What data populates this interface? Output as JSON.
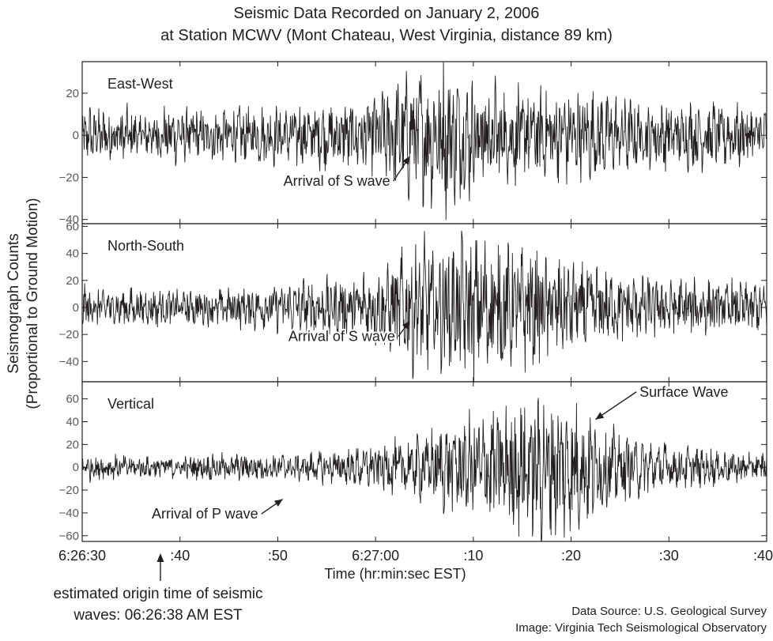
{
  "title": "Seismic Data Recorded on January 2, 2006",
  "subtitle": "at Station MCWV (Mont Chateau, West Virginia, distance 89 km)",
  "ylabel_line1": "Seismograph Counts",
  "ylabel_line2": "(Proportional to Ground Motion)",
  "xlabel": "Time (hr:min:sec EST)",
  "origin_note_line1": "estimated origin time of seismic",
  "origin_note_line2": "waves:  06:26:38 AM EST",
  "source_line1": "Data Source: U.S. Geological Survey",
  "source_line2": "Image: Virginia Tech Seismological Observatory",
  "colors": {
    "trace": "#231f20",
    "axis": "#231f20",
    "background": "#ffffff"
  },
  "chart_data": {
    "type": "line",
    "x_unit_note": "seconds after 6:26:30 EST",
    "xlim": [
      0,
      70
    ],
    "x_ticks": [
      {
        "x": 0,
        "label": "6:26:30"
      },
      {
        "x": 10,
        "label": ":40"
      },
      {
        "x": 20,
        "label": ":50"
      },
      {
        "x": 30,
        "label": "6:27:00"
      },
      {
        "x": 40,
        "label": ":10"
      },
      {
        "x": 50,
        "label": ":20"
      },
      {
        "x": 60,
        "label": ":30"
      },
      {
        "x": 70,
        "label": ":40"
      }
    ],
    "origin_time_x": 8,
    "panels": [
      {
        "name": "East-West",
        "ylim": [
          -42,
          35
        ],
        "y_ticks": [
          20,
          0,
          -20,
          -40
        ],
        "y_tick_labels": [
          "20",
          "0",
          "−20",
          "−40"
        ],
        "envelope": [
          [
            0,
            14
          ],
          [
            5,
            13
          ],
          [
            10,
            13
          ],
          [
            15,
            14
          ],
          [
            20,
            14
          ],
          [
            25,
            16
          ],
          [
            29,
            18
          ],
          [
            32,
            26
          ],
          [
            34,
            30
          ],
          [
            36,
            34
          ],
          [
            37,
            36
          ],
          [
            38,
            32
          ],
          [
            40,
            28
          ],
          [
            45,
            24
          ],
          [
            50,
            22
          ],
          [
            55,
            18
          ],
          [
            60,
            16
          ],
          [
            65,
            15
          ],
          [
            70,
            14
          ]
        ],
        "annotations": [
          {
            "text": "Arrival of S wave",
            "x": 31.5,
            "y": -24,
            "arrow_to": [
              33.5,
              -10
            ]
          }
        ]
      },
      {
        "name": "North-South",
        "ylim": [
          -55,
          62
        ],
        "y_ticks": [
          60,
          40,
          20,
          0,
          -20,
          -40
        ],
        "y_tick_labels": [
          "60",
          "40",
          "20",
          "0",
          "−20",
          "−40"
        ],
        "envelope": [
          [
            0,
            16
          ],
          [
            5,
            14
          ],
          [
            10,
            14
          ],
          [
            15,
            14
          ],
          [
            20,
            18
          ],
          [
            25,
            22
          ],
          [
            30,
            28
          ],
          [
            32,
            34
          ],
          [
            33,
            44
          ],
          [
            36,
            50
          ],
          [
            40,
            52
          ],
          [
            43,
            48
          ],
          [
            46,
            44
          ],
          [
            50,
            34
          ],
          [
            55,
            26
          ],
          [
            60,
            22
          ],
          [
            65,
            20
          ],
          [
            70,
            18
          ]
        ],
        "annotations": [
          {
            "text": "Arrival of S wave",
            "x": 32,
            "y": -25,
            "arrow_to": [
              33.5,
              -10
            ]
          }
        ]
      },
      {
        "name": "Vertical",
        "ylim": [
          -65,
          75
        ],
        "y_ticks": [
          60,
          40,
          20,
          0,
          -20,
          -40,
          -60
        ],
        "y_tick_labels": [
          "60",
          "40",
          "20",
          "0",
          "−20",
          "−40",
          "−60"
        ],
        "envelope": [
          [
            0,
            12
          ],
          [
            5,
            10
          ],
          [
            10,
            10
          ],
          [
            15,
            12
          ],
          [
            20,
            12
          ],
          [
            25,
            14
          ],
          [
            30,
            20
          ],
          [
            35,
            30
          ],
          [
            38,
            40
          ],
          [
            42,
            52
          ],
          [
            46,
            62
          ],
          [
            48,
            66
          ],
          [
            50,
            60
          ],
          [
            52,
            48
          ],
          [
            55,
            30
          ],
          [
            60,
            20
          ],
          [
            65,
            16
          ],
          [
            70,
            14
          ]
        ],
        "annotations": [
          {
            "text": "Arrival of P wave",
            "x": 18,
            "y": -45,
            "arrow_to": [
              20.5,
              -28
            ]
          },
          {
            "text": "Surface Wave",
            "x": 57,
            "y": 62,
            "arrow_to": [
              52.5,
              42
            ]
          }
        ]
      }
    ]
  }
}
